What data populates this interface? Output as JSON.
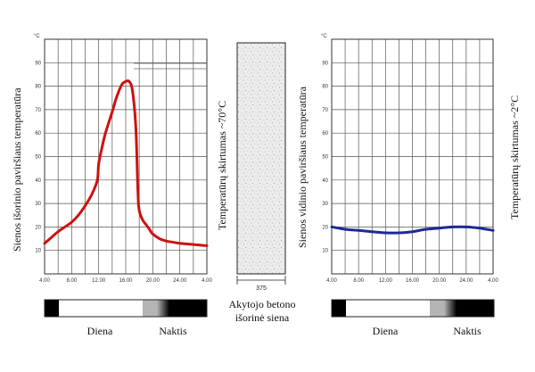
{
  "chart_data": [
    {
      "type": "line",
      "unit": "°C",
      "ylabel": "Sienos išorinio paviršiaus temperatūra",
      "annotation": "Temperatūrų skirtumas ~70°C",
      "x_ticks": [
        "4.00",
        "8.00",
        "12.00",
        "16.00",
        "20.00",
        "24.00",
        "4.00"
      ],
      "y_ticks": [
        10,
        20,
        30,
        40,
        50,
        60,
        70,
        80,
        90
      ],
      "ylim": [
        0,
        100
      ],
      "xlim": [
        4,
        28
      ],
      "grid": true,
      "color": "#cc1111",
      "series": [
        {
          "x": [
            4,
            5,
            6,
            7,
            8,
            9,
            10,
            11,
            11.8,
            12,
            12.5,
            13,
            14,
            14.5,
            15,
            15.5,
            16,
            16.5,
            17,
            17.5,
            17.8,
            18,
            18.5,
            19,
            19.5,
            20,
            21,
            22,
            23,
            24,
            26,
            28
          ],
          "y": [
            13,
            15.5,
            18,
            20,
            22,
            25,
            29,
            34,
            40,
            47,
            54,
            60,
            69,
            74,
            78,
            81,
            82,
            82,
            78,
            62,
            35,
            27,
            23,
            21,
            19,
            17,
            15,
            14,
            13.5,
            13,
            12.5,
            12
          ]
        }
      ]
    },
    {
      "type": "line",
      "unit": "°C",
      "ylabel": "Sienos vidinio paviršiaus temperatūra",
      "annotation": "Temperatūrų skirtumas ~2°C",
      "x_ticks": [
        "4.00",
        "8.00",
        "12.00",
        "16.00",
        "20.00",
        "24.00",
        "4.00"
      ],
      "y_ticks": [
        10,
        20,
        30,
        40,
        50,
        60,
        70,
        80,
        90
      ],
      "ylim": [
        0,
        100
      ],
      "xlim": [
        4,
        28
      ],
      "grid": true,
      "color": "#1a2a99",
      "series": [
        {
          "x": [
            4,
            6,
            8,
            10,
            12,
            14,
            16,
            18,
            20,
            22,
            24,
            26,
            28
          ],
          "y": [
            20,
            19,
            18.5,
            18,
            17.5,
            17.5,
            18,
            19,
            19.5,
            20,
            20,
            19.5,
            18.5
          ]
        }
      ]
    }
  ],
  "wall": {
    "caption_line1": "Akytojo betono",
    "caption_line2": "išorinė siena",
    "thickness": "375"
  },
  "day_night_left": {
    "day": "Diena",
    "night": "Naktis"
  },
  "day_night_right": {
    "day": "Diena",
    "night": "Naktis"
  },
  "day_bar_colors": [
    "#000000",
    "#ffffff",
    "#b5b5b5",
    "#000000"
  ]
}
